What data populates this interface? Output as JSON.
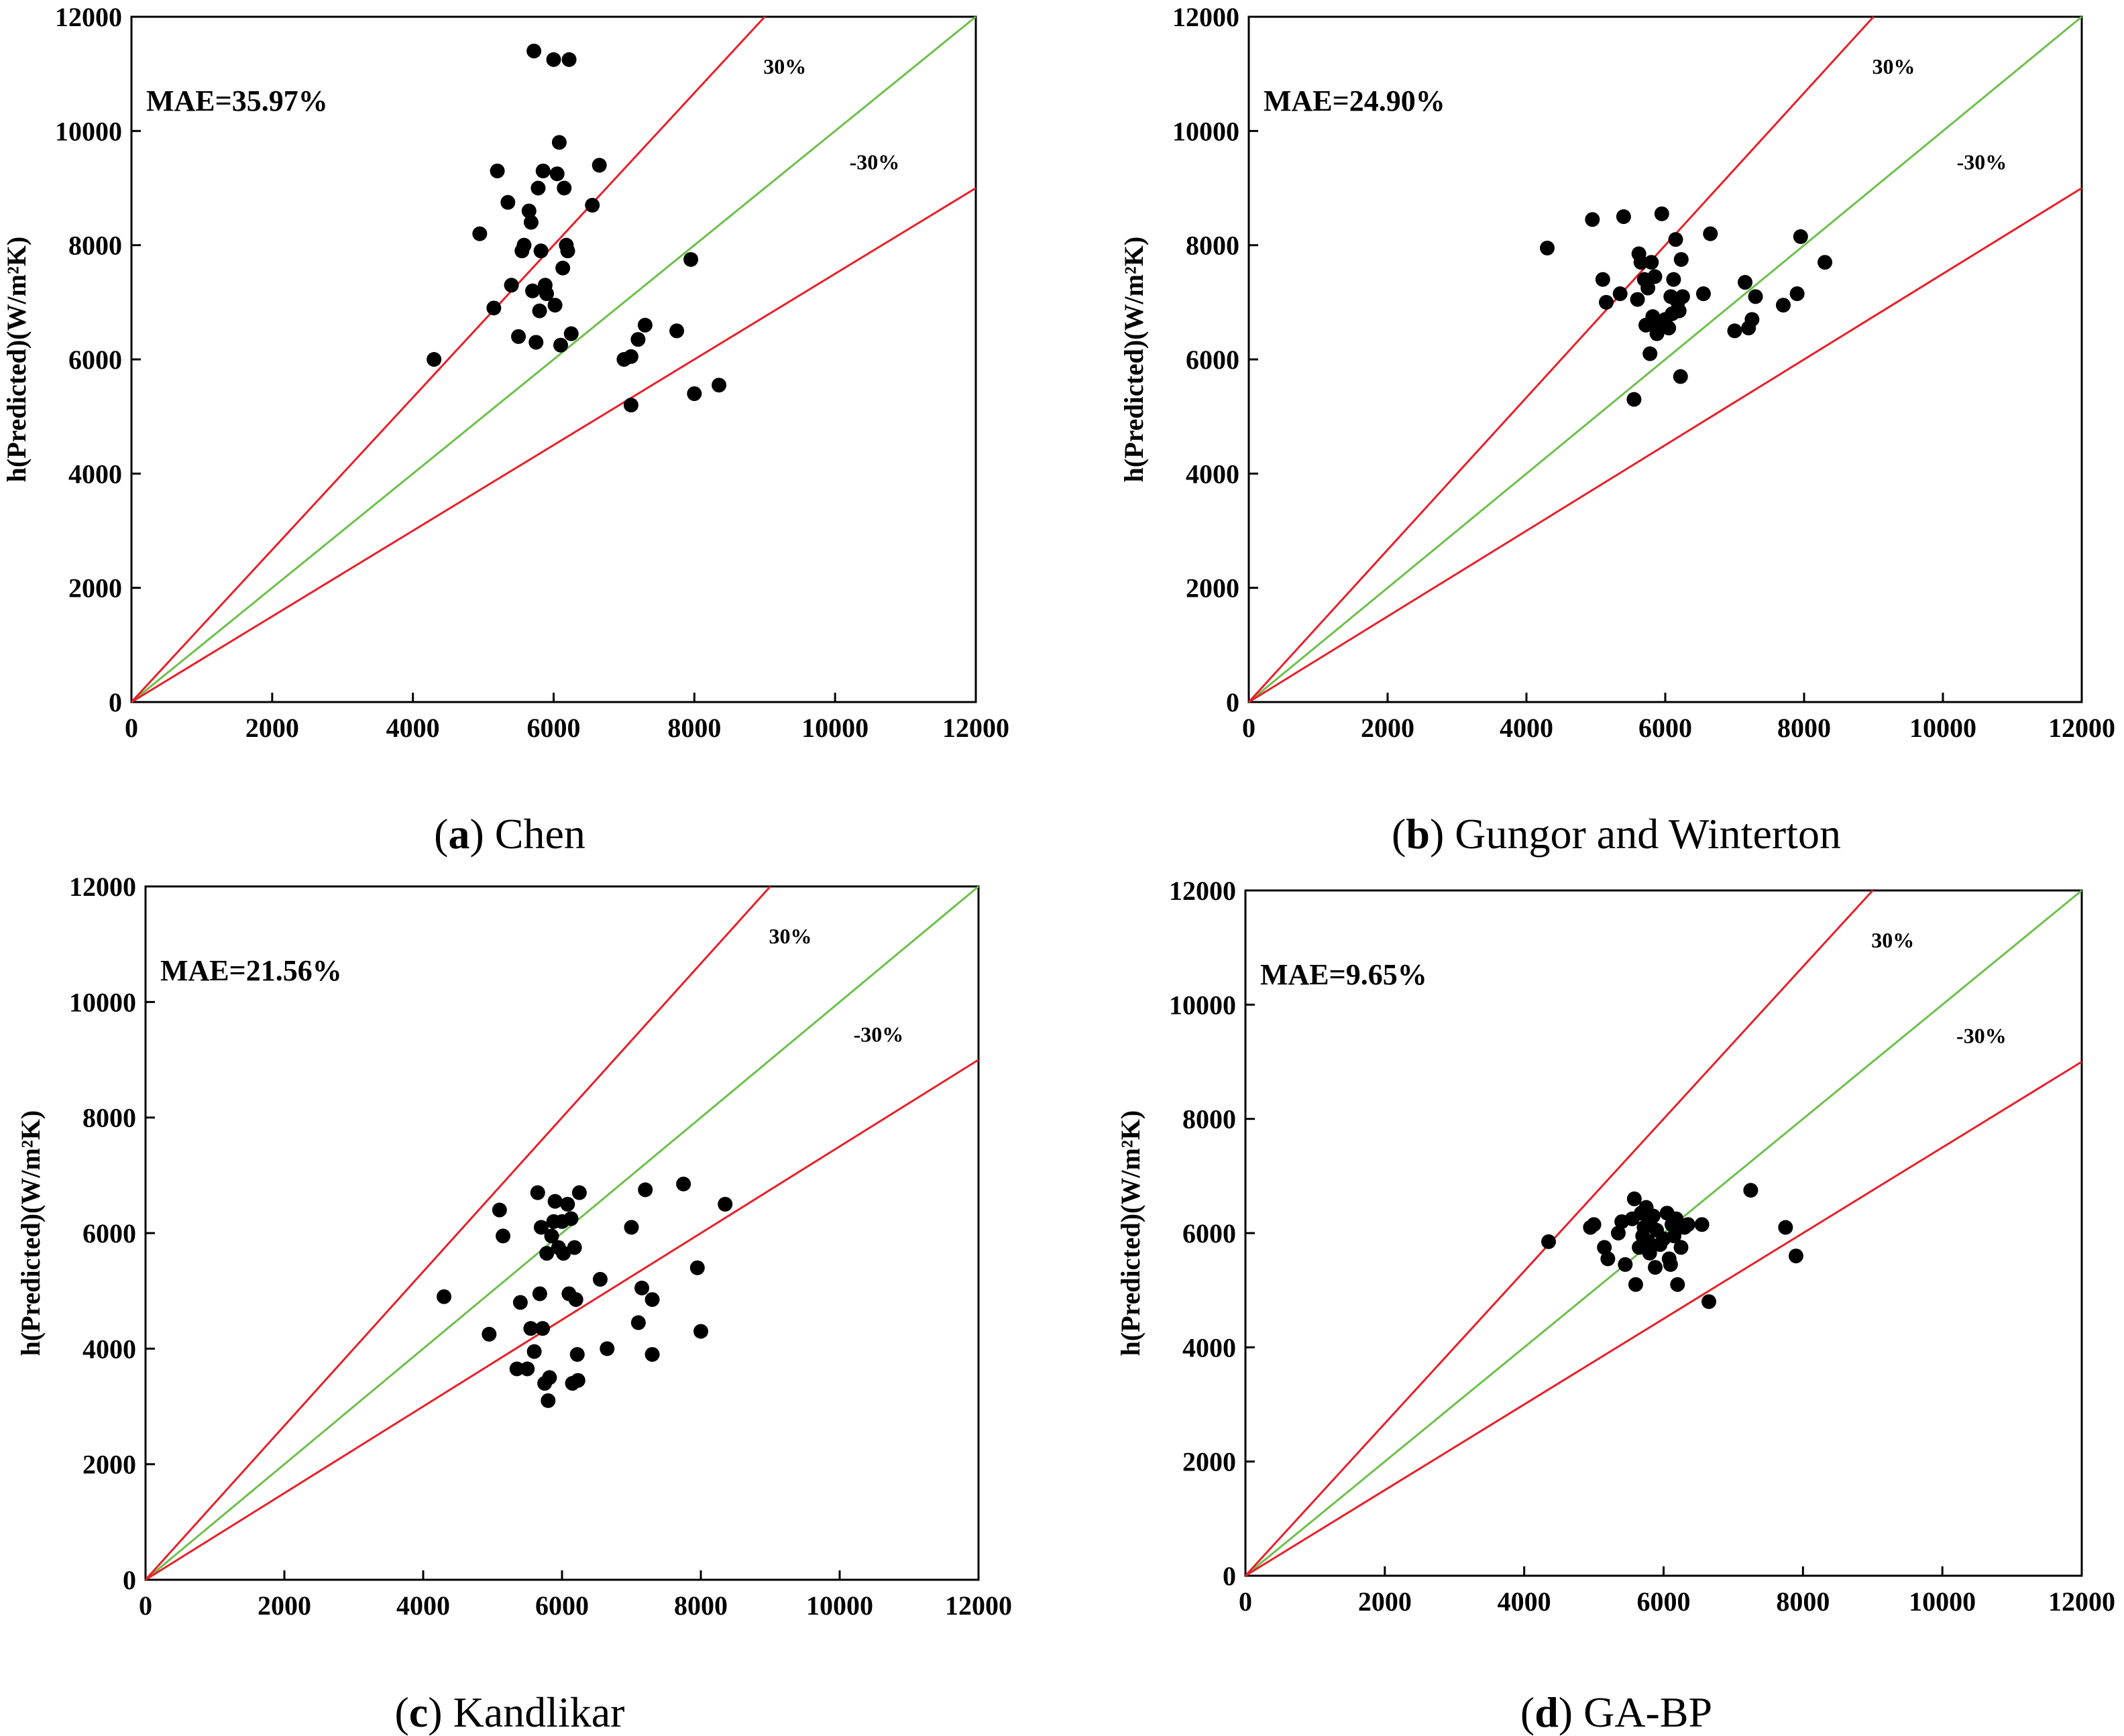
{
  "figure": {
    "colors": {
      "points": "#000000",
      "bound_lines": "#e8202a",
      "diagonal": "#6cc04a",
      "axes": "#000000"
    }
  },
  "chart_data": [
    {
      "type": "scatter",
      "caption_letter": "a",
      "caption_text": "Chen",
      "annotation": "MAE=35.97%",
      "ylabel": "h(Predicted)(W/m²K)",
      "xlabel": "",
      "xlim": [
        0,
        12000
      ],
      "ylim": [
        0,
        12000
      ],
      "xticks": [
        "0",
        "2000",
        "4000",
        "6000",
        "8000",
        "10000",
        "12000"
      ],
      "yticks": [
        "0",
        "2000",
        "4000",
        "6000",
        "8000",
        "10000",
        "12000"
      ],
      "reference_lines": [
        {
          "label": "",
          "slope": 1.0,
          "style": "green"
        },
        {
          "label": "30%",
          "slope": 1.3333,
          "style": "red"
        },
        {
          "label": "-30%",
          "slope": 0.75,
          "style": "red"
        }
      ],
      "points": [
        [
          4300,
          6000
        ],
        [
          4950,
          8200
        ],
        [
          5150,
          6900
        ],
        [
          5200,
          9300
        ],
        [
          5350,
          8750
        ],
        [
          5400,
          7300
        ],
        [
          5500,
          6400
        ],
        [
          5550,
          7900
        ],
        [
          5580,
          8000
        ],
        [
          5650,
          8600
        ],
        [
          5680,
          8400
        ],
        [
          5700,
          7200
        ],
        [
          5720,
          11400
        ],
        [
          5750,
          6300
        ],
        [
          5780,
          9000
        ],
        [
          5800,
          6850
        ],
        [
          5820,
          7900
        ],
        [
          5850,
          9300
        ],
        [
          5880,
          7300
        ],
        [
          5900,
          7150
        ],
        [
          6000,
          11250
        ],
        [
          6020,
          6950
        ],
        [
          6050,
          9250
        ],
        [
          6080,
          9800
        ],
        [
          6100,
          6250
        ],
        [
          6130,
          7600
        ],
        [
          6150,
          9000
        ],
        [
          6180,
          8000
        ],
        [
          6200,
          7900
        ],
        [
          6220,
          11250
        ],
        [
          6250,
          6450
        ],
        [
          6550,
          8700
        ],
        [
          6650,
          9400
        ],
        [
          7000,
          6000
        ],
        [
          7100,
          5200
        ],
        [
          7100,
          6050
        ],
        [
          7200,
          6350
        ],
        [
          7300,
          6600
        ],
        [
          7750,
          6500
        ],
        [
          7950,
          7750
        ],
        [
          8000,
          5400
        ],
        [
          8350,
          5550
        ]
      ]
    },
    {
      "type": "scatter",
      "caption_letter": "b",
      "caption_text": "Gungor and Winterton",
      "annotation": "MAE=24.90%",
      "ylabel": "h(Predicted)(W/m²K)",
      "xlabel": "",
      "xlim": [
        0,
        12000
      ],
      "ylim": [
        0,
        12000
      ],
      "xticks": [
        "0",
        "2000",
        "4000",
        "6000",
        "8000",
        "10000",
        "12000"
      ],
      "yticks": [
        "0",
        "2000",
        "4000",
        "6000",
        "8000",
        "10000",
        "12000"
      ],
      "reference_lines": [
        {
          "label": "",
          "slope": 1.0,
          "style": "green"
        },
        {
          "label": "30%",
          "slope": 1.3333,
          "style": "red"
        },
        {
          "label": "-30%",
          "slope": 0.75,
          "style": "red"
        }
      ],
      "points": [
        [
          4300,
          7950
        ],
        [
          4950,
          8450
        ],
        [
          5100,
          7400
        ],
        [
          5150,
          7000
        ],
        [
          5350,
          7150
        ],
        [
          5400,
          8500
        ],
        [
          5550,
          5300
        ],
        [
          5600,
          7050
        ],
        [
          5620,
          7850
        ],
        [
          5650,
          7700
        ],
        [
          5700,
          7400
        ],
        [
          5720,
          6600
        ],
        [
          5750,
          7250
        ],
        [
          5780,
          6100
        ],
        [
          5800,
          7700
        ],
        [
          5820,
          6750
        ],
        [
          5850,
          7450
        ],
        [
          5880,
          6450
        ],
        [
          5900,
          6600
        ],
        [
          5950,
          8550
        ],
        [
          6000,
          6700
        ],
        [
          6050,
          6550
        ],
        [
          6080,
          7100
        ],
        [
          6100,
          6800
        ],
        [
          6120,
          7400
        ],
        [
          6150,
          8100
        ],
        [
          6180,
          7000
        ],
        [
          6200,
          6850
        ],
        [
          6220,
          5700
        ],
        [
          6230,
          7750
        ],
        [
          6250,
          7100
        ],
        [
          6550,
          7150
        ],
        [
          6650,
          8200
        ],
        [
          7000,
          6500
        ],
        [
          7150,
          7350
        ],
        [
          7200,
          6550
        ],
        [
          7250,
          6700
        ],
        [
          7300,
          7100
        ],
        [
          7700,
          6950
        ],
        [
          7900,
          7150
        ],
        [
          7950,
          8150
        ],
        [
          8300,
          7700
        ]
      ]
    },
    {
      "type": "scatter",
      "caption_letter": "c",
      "caption_text": "Kandlikar",
      "annotation": "MAE=21.56%",
      "ylabel": "h(Predicted)(W/m²K)",
      "xlabel": "",
      "xlim": [
        0,
        12000
      ],
      "ylim": [
        0,
        12000
      ],
      "xticks": [
        "0",
        "2000",
        "4000",
        "6000",
        "8000",
        "10000",
        "12000"
      ],
      "yticks": [
        "0",
        "2000",
        "4000",
        "6000",
        "8000",
        "10000",
        "12000"
      ],
      "reference_lines": [
        {
          "label": "",
          "slope": 1.0,
          "style": "green"
        },
        {
          "label": "30%",
          "slope": 1.3333,
          "style": "red"
        },
        {
          "label": "-30%",
          "slope": 0.75,
          "style": "red"
        }
      ],
      "points": [
        [
          4300,
          4900
        ],
        [
          4950,
          4250
        ],
        [
          5100,
          6400
        ],
        [
          5150,
          5950
        ],
        [
          5350,
          3650
        ],
        [
          5400,
          4800
        ],
        [
          5500,
          3650
        ],
        [
          5550,
          4350
        ],
        [
          5600,
          3950
        ],
        [
          5650,
          6700
        ],
        [
          5680,
          4950
        ],
        [
          5700,
          6100
        ],
        [
          5720,
          4350
        ],
        [
          5750,
          3400
        ],
        [
          5780,
          5650
        ],
        [
          5800,
          3100
        ],
        [
          5820,
          3500
        ],
        [
          5850,
          5950
        ],
        [
          5880,
          6200
        ],
        [
          5900,
          6550
        ],
        [
          5950,
          5750
        ],
        [
          6000,
          6200
        ],
        [
          6020,
          5650
        ],
        [
          6080,
          6500
        ],
        [
          6100,
          4950
        ],
        [
          6130,
          6250
        ],
        [
          6150,
          3400
        ],
        [
          6180,
          5750
        ],
        [
          6200,
          4850
        ],
        [
          6220,
          3900
        ],
        [
          6230,
          3450
        ],
        [
          6250,
          6700
        ],
        [
          6550,
          5200
        ],
        [
          6650,
          4000
        ],
        [
          7000,
          6100
        ],
        [
          7100,
          4450
        ],
        [
          7150,
          5050
        ],
        [
          7200,
          6750
        ],
        [
          7300,
          4850
        ],
        [
          7300,
          3900
        ],
        [
          7750,
          6850
        ],
        [
          7950,
          5400
        ],
        [
          8000,
          4300
        ],
        [
          8350,
          6500
        ]
      ]
    },
    {
      "type": "scatter",
      "caption_letter": "d",
      "caption_text": "GA-BP",
      "annotation": "MAE=9.65%",
      "ylabel": "h(Predicted)(W/m²K)",
      "xlabel": "",
      "xlim": [
        0,
        12000
      ],
      "ylim": [
        0,
        12000
      ],
      "xticks": [
        "0",
        "2000",
        "4000",
        "6000",
        "8000",
        "10000",
        "12000"
      ],
      "yticks": [
        "0",
        "2000",
        "4000",
        "6000",
        "8000",
        "10000",
        "12000"
      ],
      "reference_lines": [
        {
          "label": "",
          "slope": 1.0,
          "style": "green"
        },
        {
          "label": "30%",
          "slope": 1.3333,
          "style": "red"
        },
        {
          "label": "-30%",
          "slope": 0.75,
          "style": "red"
        }
      ],
      "points": [
        [
          4350,
          5850
        ],
        [
          4950,
          6100
        ],
        [
          5000,
          6150
        ],
        [
          5150,
          5750
        ],
        [
          5200,
          5550
        ],
        [
          5350,
          6000
        ],
        [
          5400,
          6200
        ],
        [
          5450,
          5450
        ],
        [
          5550,
          6250
        ],
        [
          5580,
          6600
        ],
        [
          5600,
          5100
        ],
        [
          5650,
          5750
        ],
        [
          5680,
          6350
        ],
        [
          5700,
          5950
        ],
        [
          5720,
          6100
        ],
        [
          5750,
          6450
        ],
        [
          5780,
          5850
        ],
        [
          5800,
          5650
        ],
        [
          5820,
          6250
        ],
        [
          5850,
          6300
        ],
        [
          5880,
          5400
        ],
        [
          5900,
          6050
        ],
        [
          5950,
          5800
        ],
        [
          6000,
          5900
        ],
        [
          6050,
          6350
        ],
        [
          6080,
          5550
        ],
        [
          6100,
          5450
        ],
        [
          6120,
          6150
        ],
        [
          6150,
          5950
        ],
        [
          6180,
          6250
        ],
        [
          6200,
          5100
        ],
        [
          6220,
          6100
        ],
        [
          6250,
          5750
        ],
        [
          6300,
          6100
        ],
        [
          6350,
          6150
        ],
        [
          6550,
          6150
        ],
        [
          6650,
          4800
        ],
        [
          7250,
          6750
        ],
        [
          7750,
          6100
        ],
        [
          7900,
          5600
        ]
      ]
    }
  ]
}
